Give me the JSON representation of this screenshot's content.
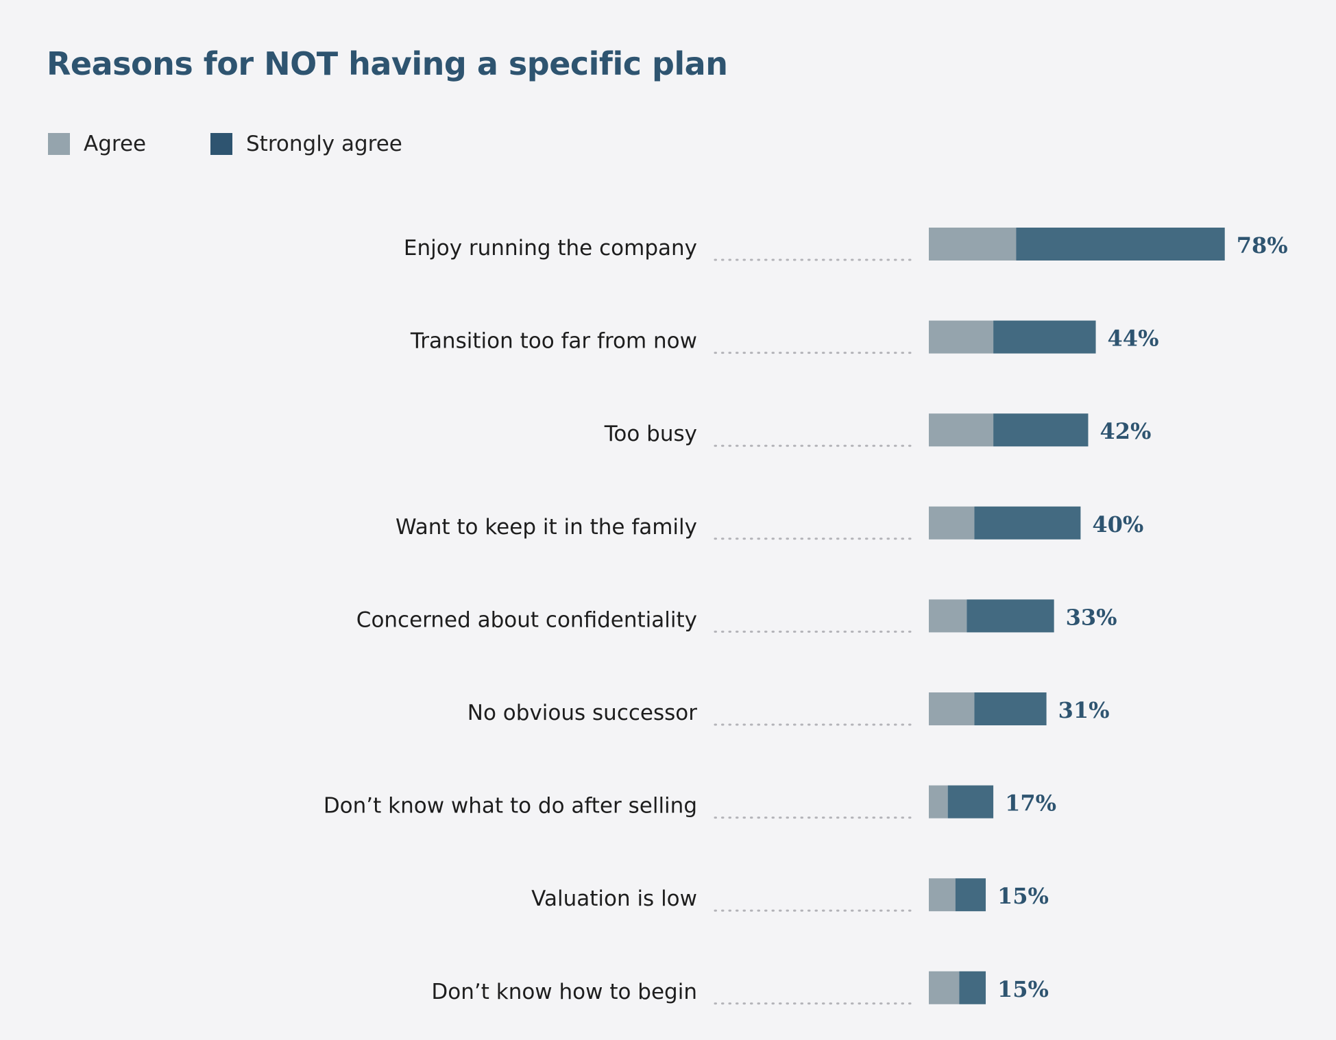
{
  "colors": {
    "agree": "#95a4ad",
    "strongly_agree": "#436a81",
    "title": "#2e5470",
    "dots": "#b3b3b8"
  },
  "chart_data": {
    "type": "bar",
    "orientation": "horizontal",
    "stacked": true,
    "title": "Reasons for NOT having a specific plan",
    "legend": {
      "placement": "top-left",
      "items": [
        {
          "label": "Agree",
          "color": "#95a4ad"
        },
        {
          "label": "Strongly agree",
          "color": "#2e5470"
        }
      ]
    },
    "grid": false,
    "xlim": [
      0,
      80
    ],
    "categories": [
      "Enjoy running the company",
      "Transition too far from now",
      "Too busy",
      "Want to keep it in the family",
      "Concerned about confidentiality",
      "No obvious successor",
      "Don’t know what to do after selling",
      "Valuation is low",
      "Don’t know how to begin"
    ],
    "series": [
      {
        "name": "Agree",
        "values": [
          23,
          17,
          17,
          12,
          10,
          12,
          5,
          7,
          8
        ]
      },
      {
        "name": "Strongly agree",
        "values": [
          55,
          27,
          25,
          28,
          23,
          19,
          12,
          8,
          7
        ]
      }
    ],
    "totals": [
      78,
      44,
      42,
      40,
      33,
      31,
      17,
      15,
      15
    ],
    "total_labels": [
      "78%",
      "44%",
      "42%",
      "40%",
      "33%",
      "31%",
      "17%",
      "15%",
      "15%"
    ]
  }
}
